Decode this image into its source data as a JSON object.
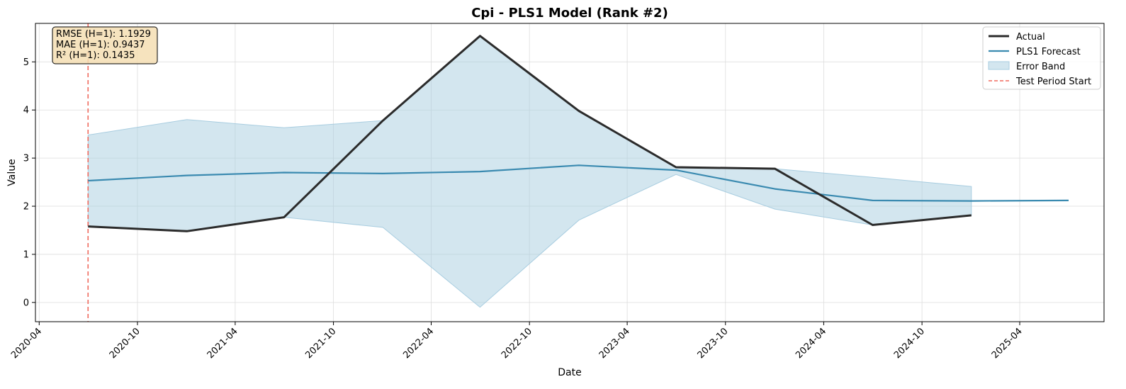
{
  "chart_data": {
    "type": "line",
    "title": "Cpi - PLS1 Model (Rank #2)",
    "xlabel": "Date",
    "ylabel": "Value",
    "xlim": [
      "2020-03-25",
      "2025-09-05"
    ],
    "ylim": [
      -0.4,
      5.8
    ],
    "x_ticks": [
      "2020-04",
      "2020-10",
      "2021-04",
      "2021-10",
      "2022-04",
      "2022-10",
      "2023-04",
      "2023-10",
      "2024-04",
      "2024-10",
      "2025-04"
    ],
    "y_ticks": [
      0,
      1,
      2,
      3,
      4,
      5
    ],
    "grid": true,
    "legend_position": "top-right",
    "series": [
      {
        "name": "Actual",
        "color": "#2b2b2b",
        "x": [
          "2020-07-01",
          "2021-01-01",
          "2021-07-01",
          "2022-01-01",
          "2022-07-01",
          "2023-01-01",
          "2023-07-01",
          "2024-01-01",
          "2024-07-01",
          "2025-01-01"
        ],
        "values": [
          1.58,
          1.48,
          1.77,
          3.78,
          5.54,
          3.98,
          2.81,
          2.78,
          1.61,
          1.81
        ]
      },
      {
        "name": "PLS1 Forecast",
        "color": "#3a8ab0",
        "x": [
          "2020-07-01",
          "2021-01-01",
          "2021-07-01",
          "2022-01-01",
          "2022-07-01",
          "2023-01-01",
          "2023-07-01",
          "2024-01-01",
          "2024-07-01",
          "2025-01-01",
          "2025-07-01"
        ],
        "values": [
          2.53,
          2.64,
          2.7,
          2.68,
          2.72,
          2.85,
          2.75,
          2.36,
          2.12,
          2.11,
          2.12
        ]
      }
    ],
    "error_band": {
      "name": "Error Band",
      "color": "#a8cde0",
      "x": [
        "2020-07-01",
        "2021-01-01",
        "2021-07-01",
        "2022-01-01",
        "2022-07-01",
        "2023-01-01",
        "2023-07-01",
        "2024-01-01",
        "2024-07-01",
        "2025-01-01"
      ],
      "upper": [
        3.48,
        3.8,
        3.63,
        3.78,
        5.54,
        3.98,
        2.81,
        2.78,
        2.6,
        2.41
      ],
      "lower": [
        1.58,
        1.48,
        1.77,
        1.56,
        -0.1,
        1.71,
        2.66,
        1.94,
        1.61,
        1.81
      ]
    },
    "vline": {
      "name": "Test Period Start",
      "x": "2020-07-01",
      "color": "#f06a5e"
    },
    "metrics": [
      "RMSE (H=1): 1.1929",
      "MAE (H=1): 0.9437",
      "R² (H=1): 0.1435"
    ]
  }
}
